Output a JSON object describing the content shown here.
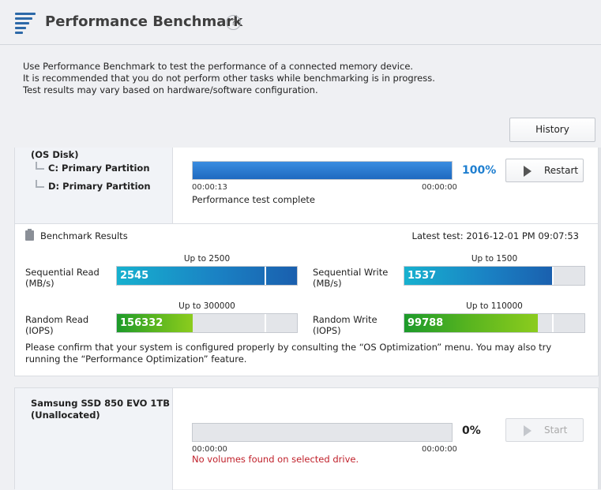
{
  "header": {
    "title": "Performance Benchmark",
    "help": "?"
  },
  "intro": [
    "Use Performance Benchmark to test the performance of a connected memory device.",
    "It is recommended that you do not perform other tasks while benchmarking is in progress.",
    "Test results may vary based on hardware/software configuration."
  ],
  "history_label": "History",
  "drive1": {
    "name": "(OS Disk)",
    "partitions": [
      "C: Primary Partition",
      "D: Primary Partition"
    ],
    "progress_percent": 100,
    "percent_label": "100%",
    "elapsed": "00:00:13",
    "remaining": "00:00:00",
    "status": "Performance test complete",
    "button": "Restart"
  },
  "results": {
    "title": "Benchmark Results",
    "latest": "Latest test: 2016-12-01 PM 09:07:53",
    "seq_read": {
      "label1": "Sequential Read",
      "label2": "(MB/s)",
      "value": "2545",
      "max": "Up to 2500",
      "fill_fraction": 1.0,
      "marker_fraction": 0.82
    },
    "seq_write": {
      "label1": "Sequential Write",
      "label2": "(MB/s)",
      "value": "1537",
      "max": "Up to 1500",
      "fill_fraction": 0.83,
      "marker_fraction": 0.82
    },
    "rand_read": {
      "label1": "Random Read",
      "label2": "(IOPS)",
      "value": "156332",
      "max": "Up to 300000",
      "fill_fraction": 0.42,
      "marker_fraction": 0.82
    },
    "rand_write": {
      "label1": "Random Write",
      "label2": "(IOPS)",
      "value": "99788",
      "max": "Up to 110000",
      "fill_fraction": 0.74,
      "marker_fraction": 0.82
    },
    "note": "Please confirm that your system is configured properly by consulting the “OS Optimization” menu. You may also try running the “Performance Optimization” feature."
  },
  "drive2": {
    "name1": "Samsung SSD 850 EVO 1TB",
    "name2": "(Unallocated)",
    "progress_percent": 0,
    "percent_label": "0%",
    "elapsed": "00:00:00",
    "remaining": "00:00:00",
    "status": "No volumes found on selected drive.",
    "button": "Start"
  }
}
